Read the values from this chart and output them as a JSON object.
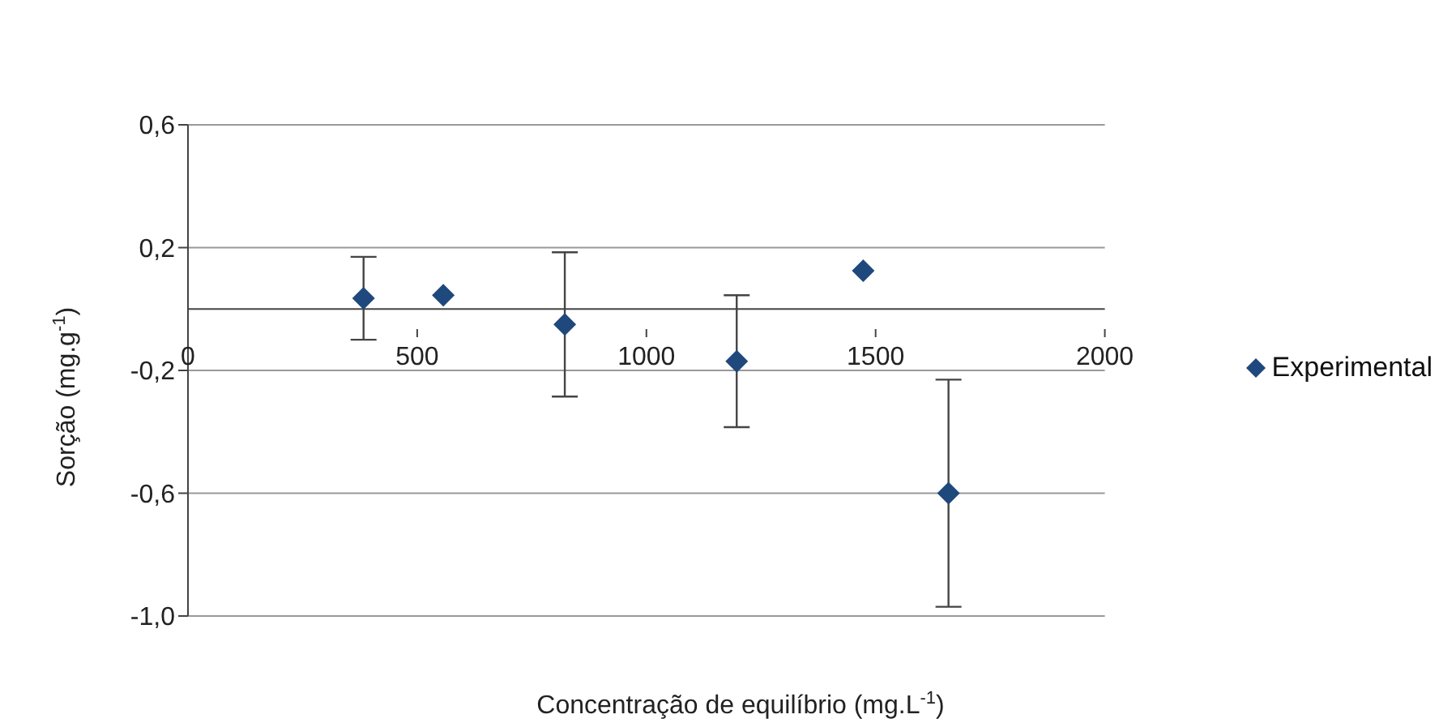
{
  "chart_data": {
    "type": "scatter",
    "xlabel": "Concentração de equilíbrio (mg.L$^{-1}$)",
    "ylabel": "Sorção (mg.g$^{-1}$)",
    "x": [
      383,
      557,
      822,
      1197,
      1473,
      1659
    ],
    "series": [
      {
        "name": "Experimental",
        "color": "#1f497d",
        "values": [
          0.035,
          0.045,
          -0.05,
          -0.17,
          0.125,
          -0.6
        ],
        "errors": [
          0.135,
          null,
          0.235,
          0.215,
          null,
          0.37
        ]
      }
    ],
    "xlim": [
      0,
      2000
    ],
    "xticks": [
      0,
      500,
      1000,
      1500,
      2000
    ],
    "ylim": [
      -1.0,
      0.6
    ],
    "yticks": [
      {
        "value": -1.0,
        "label": "-1,0"
      },
      {
        "value": -0.6,
        "label": "-0,6"
      },
      {
        "value": -0.2,
        "label": "-0,2"
      },
      {
        "value": 0.2,
        "label": "0,2"
      },
      {
        "value": 0.6,
        "label": "0,6"
      }
    ],
    "grid": "y",
    "legend": "right",
    "marker": "diamond"
  }
}
